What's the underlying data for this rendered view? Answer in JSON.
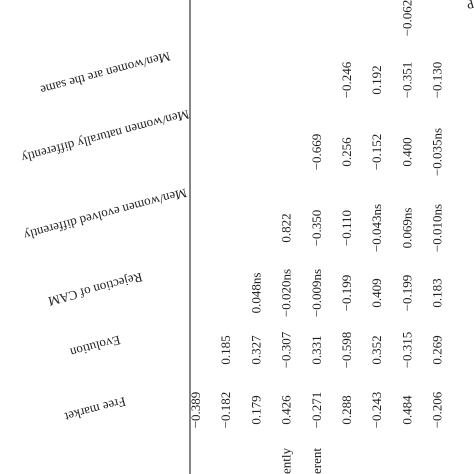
{
  "table": {
    "headers": [
      "Free market",
      "Evolution",
      "Rejection of CAM",
      "Men/women evolved differently",
      "Men/women naturally differently",
      "Men/women are the same"
    ],
    "columns": [
      {
        "cells": [
          "−0.389"
        ]
      },
      {
        "cells": [
          "−0.182",
          "0.185"
        ]
      },
      {
        "cells": [
          "0.179",
          "0.327",
          "0.048ns"
        ]
      },
      {
        "label": "ently",
        "cells": [
          "0.426",
          "−0.307",
          "−0.020ns",
          "0.822"
        ]
      },
      {
        "label": "erent",
        "cells": [
          "−0.271",
          "0.331",
          "−0.009ns",
          "−0.350",
          "−0.669"
        ]
      },
      {
        "cells": [
          "0.288",
          "−0.598",
          "−0.199",
          "−0.110",
          "0.256",
          "−0.246"
        ]
      },
      {
        "cells": [
          "−0.243",
          "0.352",
          "0.409",
          "−0.043ns",
          "−0.152",
          "0.192"
        ]
      },
      {
        "cells": [
          "0.484",
          "−0.315",
          "−0.199",
          "0.069ns",
          "0.400",
          "−0.351",
          "−0.062"
        ]
      },
      {
        "cells": [
          "−0.206",
          "0.269",
          "0.183",
          "−0.010ns",
          "−0.035ns",
          "−0.130"
        ]
      }
    ]
  }
}
